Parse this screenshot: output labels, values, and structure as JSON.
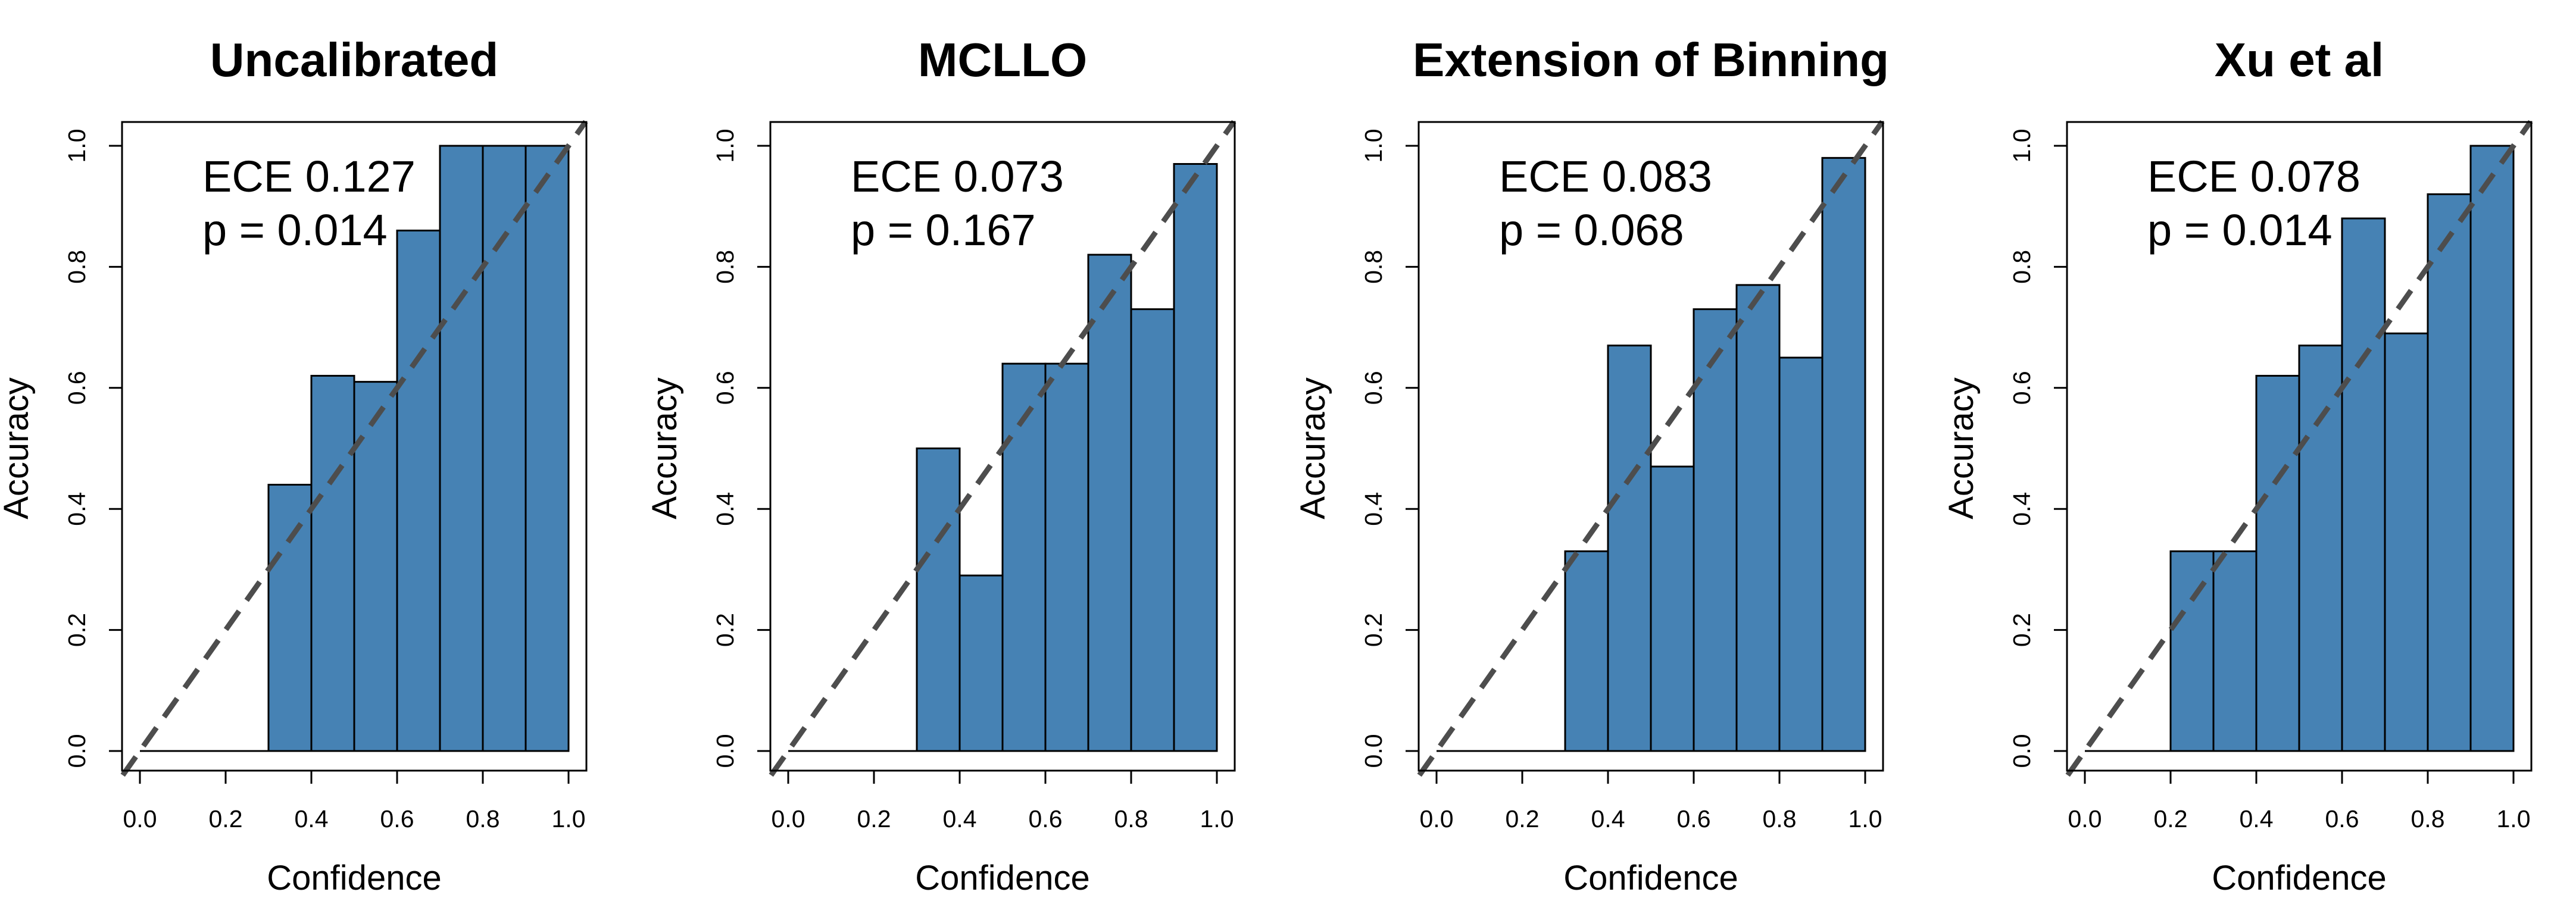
{
  "chart_data": [
    {
      "type": "bar",
      "title": "Uncalibrated",
      "xlabel": "Confidence",
      "ylabel": "Accuracy",
      "xlim": [
        0,
        1
      ],
      "ylim": [
        0,
        1
      ],
      "xticks": [
        "0.0",
        "0.2",
        "0.4",
        "0.6",
        "0.8",
        "1.0"
      ],
      "yticks": [
        "0.0",
        "0.2",
        "0.4",
        "0.6",
        "0.8",
        "1.0"
      ],
      "annotation": {
        "ece": "ECE 0.127",
        "p": "p = 0.014"
      },
      "bin_edges": [
        0.3,
        0.4,
        0.5,
        0.6,
        0.7,
        0.8,
        0.9,
        1.0
      ],
      "values": [
        0.44,
        0.62,
        0.61,
        0.86,
        1.0,
        1.0,
        1.0
      ],
      "reference_line": "diagonal y = x (dashed)"
    },
    {
      "type": "bar",
      "title": "MCLLO",
      "xlabel": "Confidence",
      "ylabel": "Accuracy",
      "xlim": [
        0,
        1
      ],
      "ylim": [
        0,
        1
      ],
      "xticks": [
        "0.0",
        "0.2",
        "0.4",
        "0.6",
        "0.8",
        "1.0"
      ],
      "yticks": [
        "0.0",
        "0.2",
        "0.4",
        "0.6",
        "0.8",
        "1.0"
      ],
      "annotation": {
        "ece": "ECE 0.073",
        "p": "p = 0.167"
      },
      "bin_edges": [
        0.3,
        0.4,
        0.5,
        0.6,
        0.7,
        0.8,
        0.9,
        1.0
      ],
      "values": [
        0.5,
        0.29,
        0.64,
        0.64,
        0.82,
        0.73,
        0.97
      ],
      "reference_line": "diagonal y = x (dashed)"
    },
    {
      "type": "bar",
      "title": "Extension of Binning",
      "xlabel": "Confidence",
      "ylabel": "Accuracy",
      "xlim": [
        0,
        1
      ],
      "ylim": [
        0,
        1
      ],
      "xticks": [
        "0.0",
        "0.2",
        "0.4",
        "0.6",
        "0.8",
        "1.0"
      ],
      "yticks": [
        "0.0",
        "0.2",
        "0.4",
        "0.6",
        "0.8",
        "1.0"
      ],
      "annotation": {
        "ece": "ECE 0.083",
        "p": "p = 0.068"
      },
      "bin_edges": [
        0.3,
        0.4,
        0.5,
        0.6,
        0.7,
        0.8,
        0.9,
        1.0
      ],
      "values": [
        0.33,
        0.67,
        0.47,
        0.73,
        0.77,
        0.65,
        0.98
      ],
      "reference_line": "diagonal y = x (dashed)"
    },
    {
      "type": "bar",
      "title": "Xu et al",
      "xlabel": "Confidence",
      "ylabel": "Accuracy",
      "xlim": [
        0,
        1
      ],
      "ylim": [
        0,
        1
      ],
      "xticks": [
        "0.0",
        "0.2",
        "0.4",
        "0.6",
        "0.8",
        "1.0"
      ],
      "yticks": [
        "0.0",
        "0.2",
        "0.4",
        "0.6",
        "0.8",
        "1.0"
      ],
      "annotation": {
        "ece": "ECE 0.078",
        "p": "p = 0.014"
      },
      "bin_edges": [
        0.2,
        0.3,
        0.4,
        0.5,
        0.6,
        0.7,
        0.8,
        0.9,
        1.0
      ],
      "values": [
        0.33,
        0.33,
        0.62,
        0.67,
        0.88,
        0.69,
        0.92,
        1.0
      ],
      "reference_line": "diagonal y = x (dashed)"
    }
  ]
}
